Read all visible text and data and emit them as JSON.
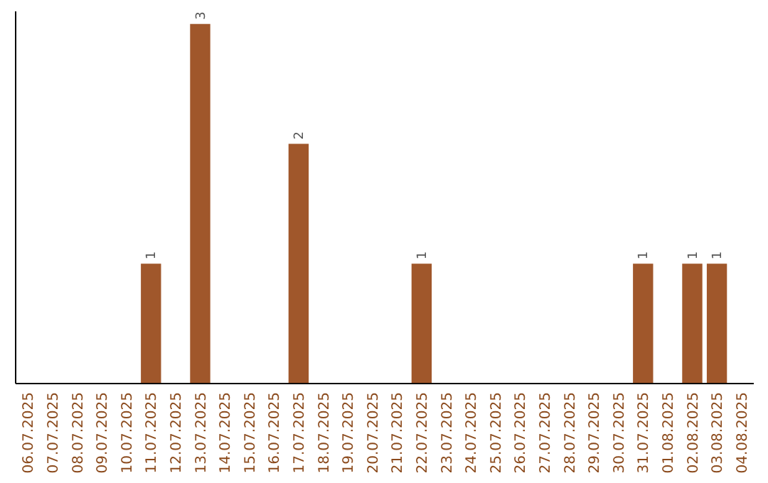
{
  "chart_data": {
    "type": "bar",
    "categories": [
      "06.07.2025",
      "07.07.2025",
      "08.07.2025",
      "09.07.2025",
      "10.07.2025",
      "11.07.2025",
      "12.07.2025",
      "13.07.2025",
      "14.07.2025",
      "15.07.2025",
      "16.07.2025",
      "17.07.2025",
      "18.07.2025",
      "19.07.2025",
      "20.07.2025",
      "21.07.2025",
      "22.07.2025",
      "23.07.2025",
      "24.07.2025",
      "25.07.2025",
      "26.07.2025",
      "27.07.2025",
      "28.07.2025",
      "29.07.2025",
      "30.07.2025",
      "31.07.2025",
      "01.08.2025",
      "02.08.2025",
      "03.08.2025",
      "04.08.2025"
    ],
    "values": [
      0,
      0,
      0,
      0,
      0,
      1,
      0,
      3,
      0,
      0,
      0,
      2,
      0,
      0,
      0,
      0,
      1,
      0,
      0,
      0,
      0,
      0,
      0,
      0,
      0,
      1,
      0,
      1,
      1,
      0
    ],
    "value_labels": [
      null,
      null,
      null,
      null,
      null,
      "1",
      null,
      "3",
      null,
      null,
      null,
      "2",
      null,
      null,
      null,
      null,
      "1",
      null,
      null,
      null,
      null,
      null,
      null,
      null,
      null,
      "1",
      null,
      "1",
      "1",
      null
    ],
    "color": "#a0572b",
    "tick_labels": "x"
  }
}
